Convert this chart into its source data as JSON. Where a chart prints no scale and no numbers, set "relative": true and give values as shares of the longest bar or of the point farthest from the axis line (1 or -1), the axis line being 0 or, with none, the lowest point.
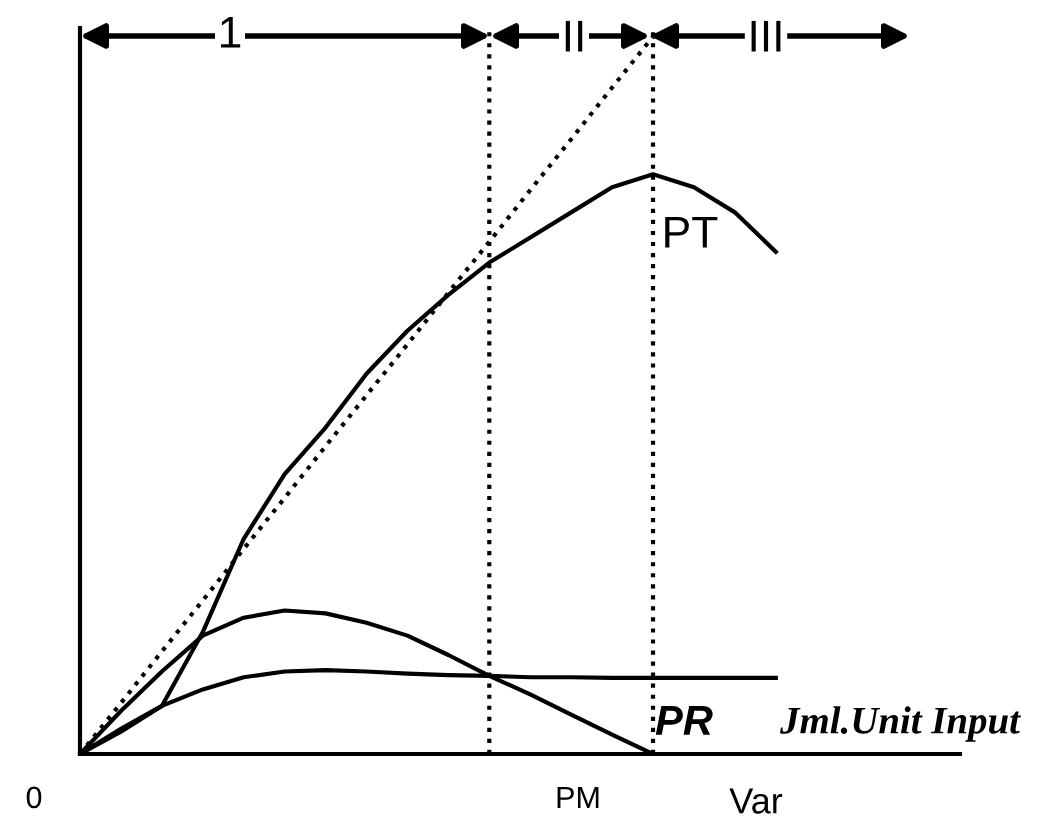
{
  "chart_data": {
    "type": "line",
    "relative": true,
    "categories": [
      null,
      null,
      null,
      null,
      null,
      null,
      null,
      null,
      null,
      null,
      null,
      null,
      null,
      null,
      null,
      null,
      null,
      null,
      null,
      null,
      null,
      null
    ],
    "series": [
      {
        "color": "#000000",
        "values": [
          0,
          0.031,
          0.067,
          0.17,
          0.3,
          0.39,
          0.455,
          0.53,
          0.59,
          0.64,
          0.685,
          0.72,
          0.755,
          0.79,
          0.808,
          0.79,
          0.755,
          0.7,
          null,
          null,
          null,
          null
        ]
      },
      {
        "color": "#000000",
        "line_style": "dotted",
        "values": [
          0,
          0.071,
          0.143,
          0.214,
          0.286,
          0.357,
          0.429,
          0.5,
          0.571,
          0.643,
          0.714,
          0.786,
          0.857,
          0.929,
          1,
          null,
          null,
          null,
          null,
          null,
          null,
          null
        ]
      },
      {
        "color": "#000000",
        "values": [
          0,
          0.06,
          0.115,
          0.165,
          0.19,
          0.2,
          0.196,
          0.183,
          0.165,
          0.138,
          0.109,
          0.083,
          0.055,
          0.027,
          0,
          null,
          null,
          null,
          null,
          null,
          null,
          null
        ]
      },
      {
        "color": "#000000",
        "values": [
          0,
          0.035,
          0.067,
          0.09,
          0.107,
          0.115,
          0.117,
          0.115,
          0.112,
          0.11,
          0.109,
          0.107,
          0.107,
          0.106,
          0.106,
          0.106,
          0.106,
          0.106,
          null,
          null,
          null,
          null
        ]
      }
    ],
    "annotations": [
      "1",
      "II",
      "III",
      "PT",
      "PR",
      "Jml.Unit Input",
      "0",
      "PM",
      "Var"
    ]
  }
}
